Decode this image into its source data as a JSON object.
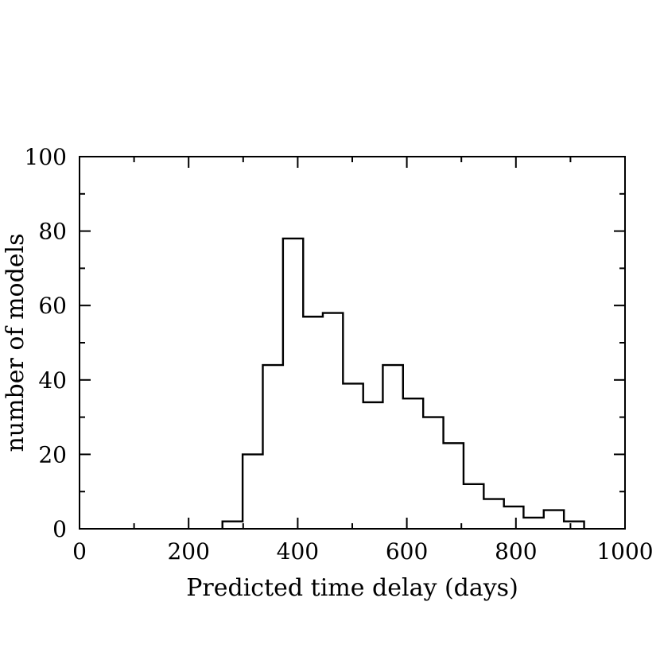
{
  "chart_data": {
    "type": "histogram",
    "title": "",
    "xlabel": "Predicted time delay (days)",
    "ylabel": "number of models",
    "xlim": [
      0,
      1000
    ],
    "ylim": [
      0,
      100
    ],
    "x_ticks": [
      0,
      200,
      400,
      600,
      800,
      1000
    ],
    "y_ticks": [
      0,
      20,
      40,
      60,
      80,
      100
    ],
    "x_tick_labels": [
      "0",
      "200",
      "400",
      "600",
      "800",
      "1000"
    ],
    "y_tick_labels": [
      "0",
      "20",
      "40",
      "60",
      "80",
      "100"
    ],
    "x_minor_step": 100,
    "y_minor_step": 10,
    "grid": false,
    "line_color": "#000000",
    "bins": [
      {
        "x0": 262,
        "x1": 299,
        "value": 2
      },
      {
        "x0": 299,
        "x1": 336,
        "value": 20
      },
      {
        "x0": 336,
        "x1": 373,
        "value": 44
      },
      {
        "x0": 373,
        "x1": 410,
        "value": 78
      },
      {
        "x0": 410,
        "x1": 446,
        "value": 57
      },
      {
        "x0": 446,
        "x1": 483,
        "value": 58
      },
      {
        "x0": 483,
        "x1": 520,
        "value": 39
      },
      {
        "x0": 520,
        "x1": 556,
        "value": 34
      },
      {
        "x0": 556,
        "x1": 593,
        "value": 44
      },
      {
        "x0": 593,
        "x1": 630,
        "value": 35
      },
      {
        "x0": 630,
        "x1": 667,
        "value": 30
      },
      {
        "x0": 667,
        "x1": 704,
        "value": 23
      },
      {
        "x0": 704,
        "x1": 741,
        "value": 12
      },
      {
        "x0": 741,
        "x1": 778,
        "value": 8
      },
      {
        "x0": 778,
        "x1": 814,
        "value": 6
      },
      {
        "x0": 814,
        "x1": 851,
        "value": 3
      },
      {
        "x0": 851,
        "x1": 888,
        "value": 5
      },
      {
        "x0": 888,
        "x1": 925,
        "value": 2
      }
    ]
  }
}
